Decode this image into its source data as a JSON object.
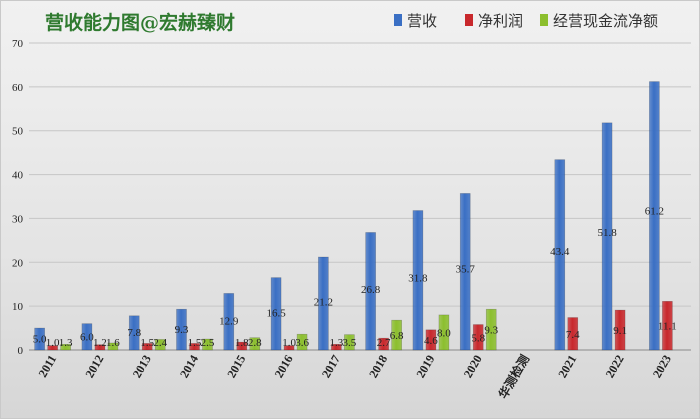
{
  "chart_data": {
    "type": "bar",
    "title": "营收能力图@宏赫臻财",
    "categories": [
      "2011",
      "2012",
      "2013",
      "2014",
      "2015",
      "2016",
      "2017",
      "2018",
      "2019",
      "2020",
      "华测检测",
      "2021",
      "2022",
      "2023"
    ],
    "series": [
      {
        "name": "营收",
        "color": "#3a6fc4",
        "values": [
          5.0,
          6.0,
          7.8,
          9.3,
          12.9,
          16.5,
          21.2,
          26.8,
          31.8,
          35.7,
          null,
          43.4,
          51.8,
          61.2
        ],
        "labels": [
          "5.0",
          "6.0",
          "7.8",
          "9.3",
          "12.9",
          "16.5",
          "21.2",
          "26.8",
          "31.8",
          "35.7",
          null,
          "43.4",
          "51.8",
          "61.2"
        ]
      },
      {
        "name": "净利润",
        "color": "#c8282c",
        "values": [
          1.0,
          1.2,
          1.5,
          1.5,
          1.8,
          1.0,
          1.3,
          2.7,
          4.6,
          5.8,
          null,
          7.4,
          9.1,
          11.1
        ],
        "labels": [
          "1.0",
          "1.2",
          "1.5",
          "1.5",
          "1.8",
          "1.0",
          "1.3",
          "2.7",
          "4.6",
          "5.8",
          null,
          "7.4",
          "9.1",
          "11.1"
        ]
      },
      {
        "name": "经营现金流净额",
        "color": "#8cbf2e",
        "values": [
          1.3,
          1.6,
          2.4,
          2.5,
          2.8,
          3.6,
          3.5,
          6.8,
          8.0,
          9.3,
          null,
          null,
          null,
          null
        ],
        "labels": [
          "1.3",
          "1.6",
          "2.4",
          "2.5",
          "2.8",
          "3.6",
          "3.5",
          "6.8",
          "8.0",
          "9.3",
          null,
          null,
          null,
          null
        ]
      }
    ],
    "ylim": [
      0,
      70
    ],
    "yticks": [
      0,
      10,
      20,
      30,
      40,
      50,
      60,
      70
    ],
    "grid": true,
    "legend": "top-right"
  }
}
